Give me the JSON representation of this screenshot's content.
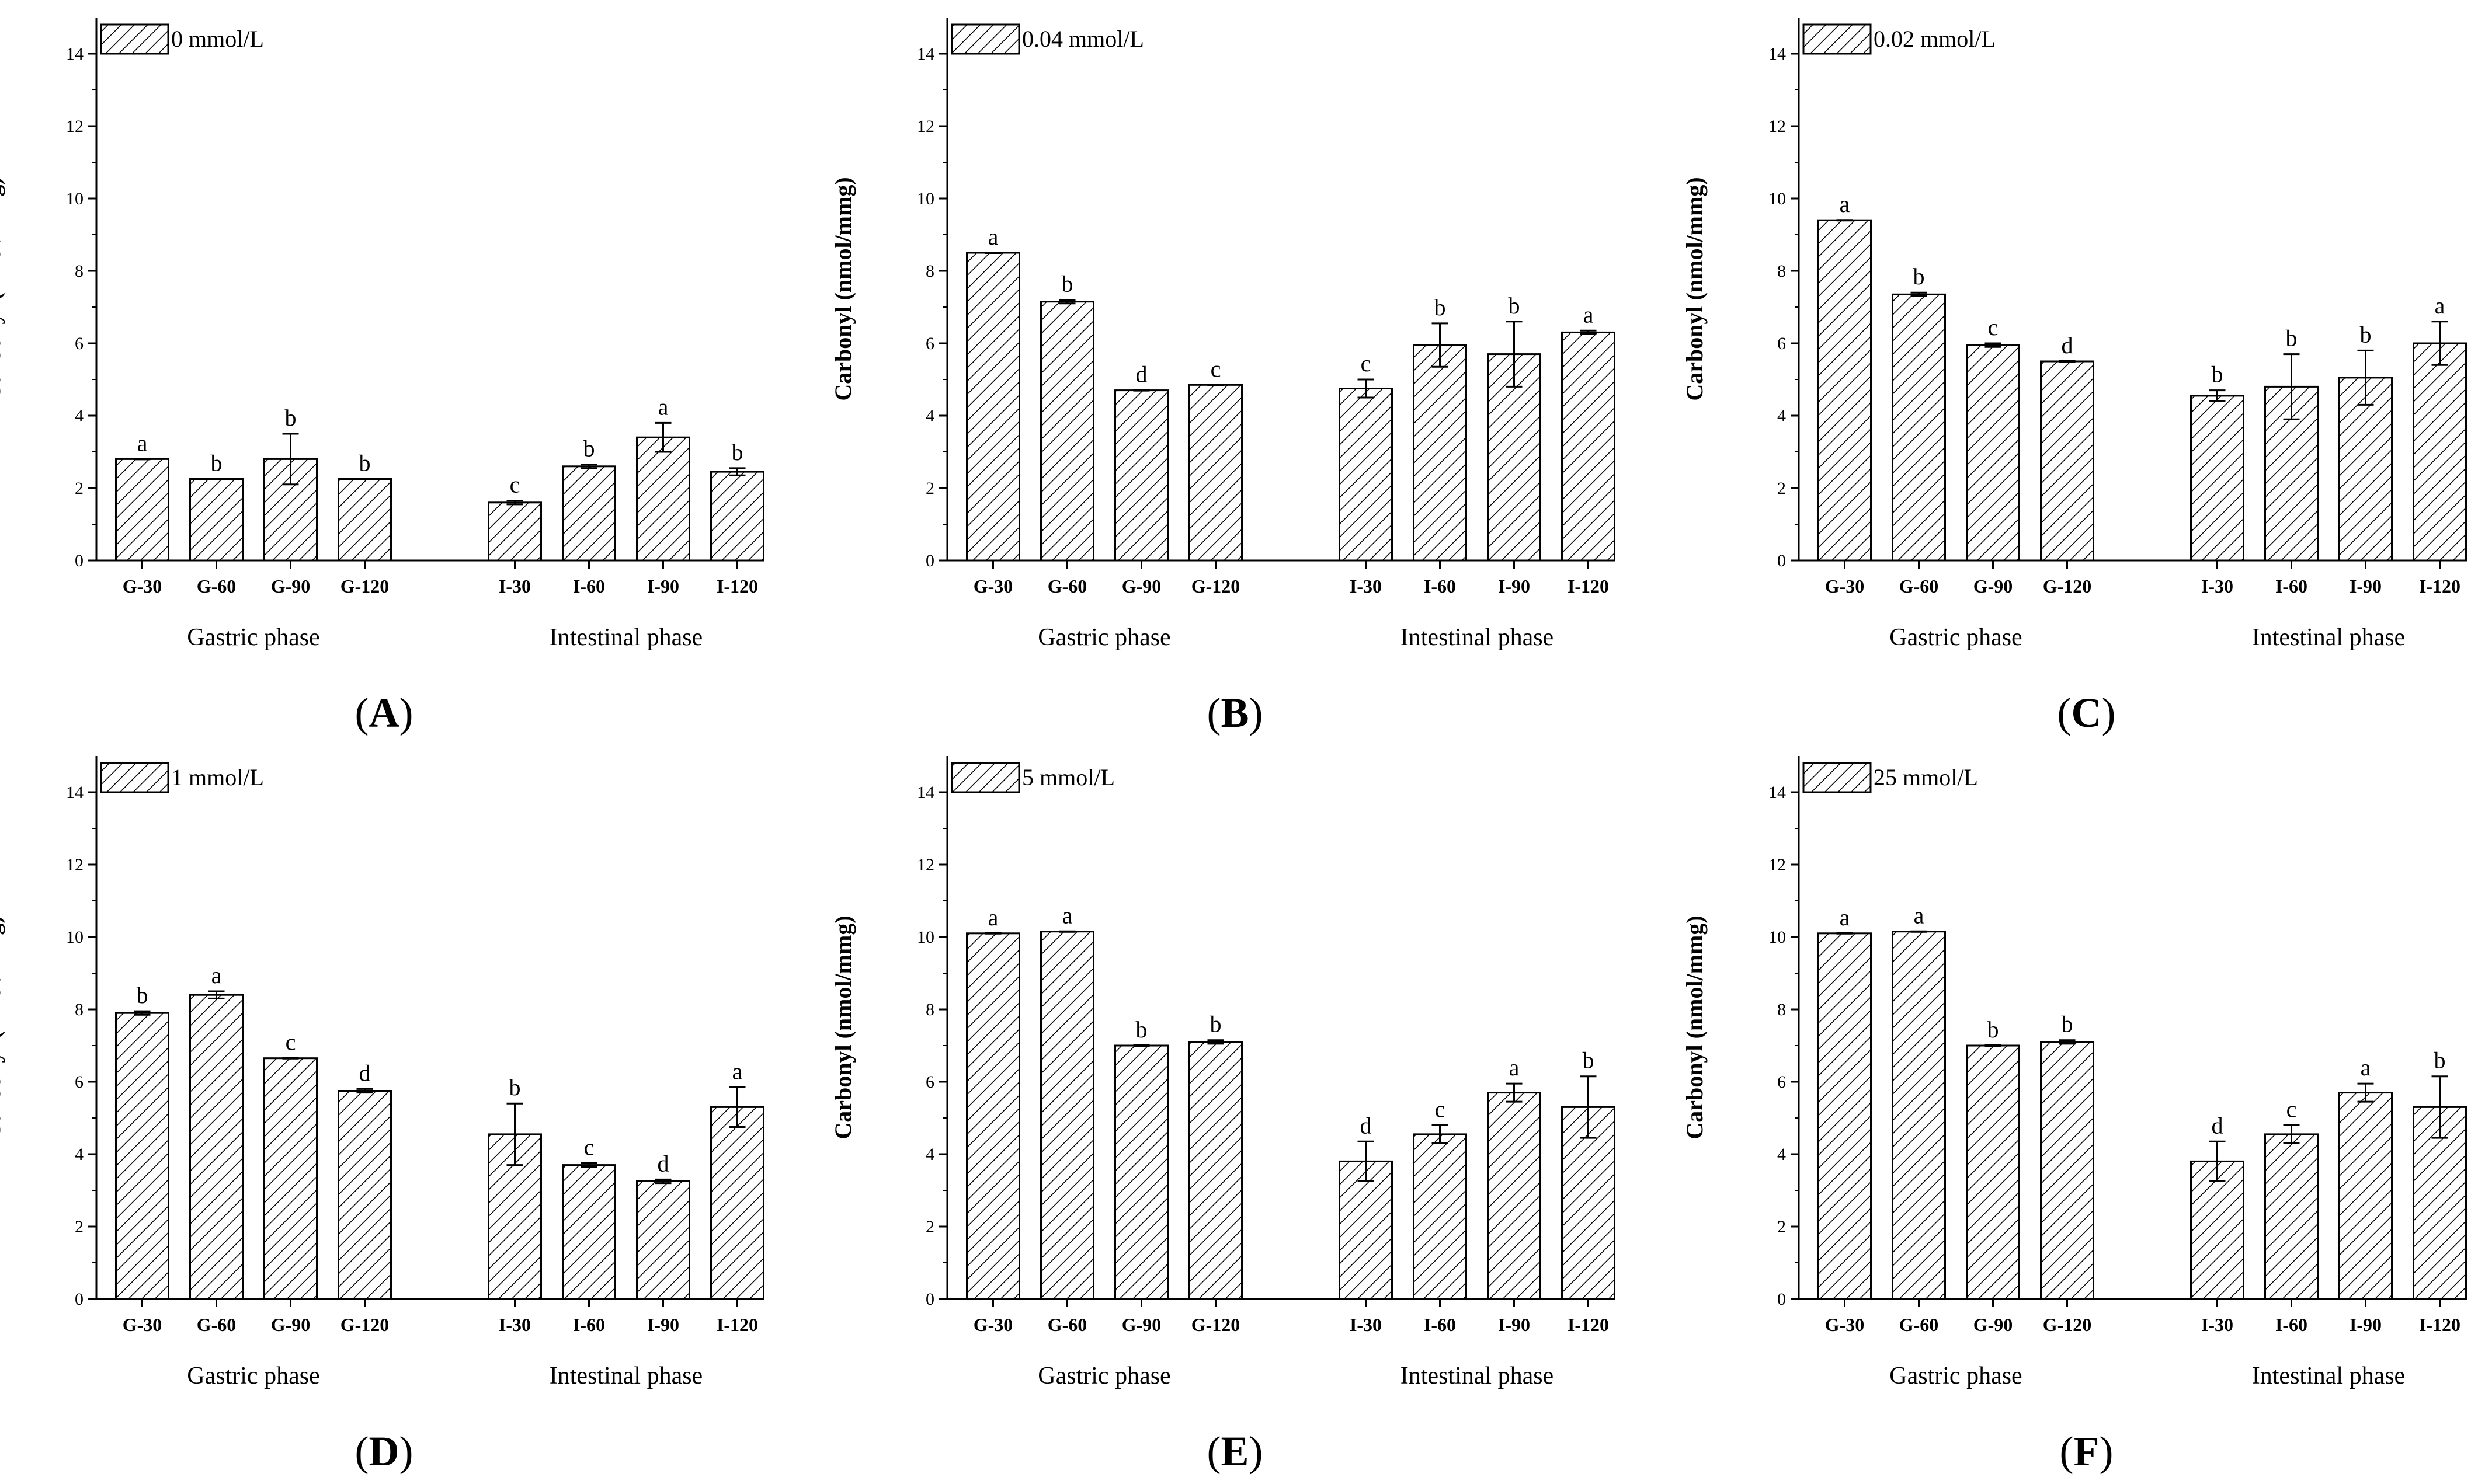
{
  "figure": {
    "panel_label_template": "({letter})",
    "axis_ylabel": "Carbonyl (nmol/mmg)"
  },
  "chart_data": [
    {
      "type": "bar",
      "panel": "A",
      "legend": "0 mmol/L",
      "ylabel": "Carbonyl (nmol/mmg)",
      "ylim": [
        0,
        15
      ],
      "yticks": [
        0,
        2,
        4,
        6,
        8,
        10,
        12,
        14
      ],
      "groups": [
        {
          "name": "Gastric phase",
          "categories": [
            "G-30",
            "G-60",
            "G-90",
            "G-120"
          ],
          "values": [
            2.8,
            2.25,
            2.8,
            2.25
          ],
          "errors": [
            0.0,
            0.0,
            0.7,
            0.0
          ],
          "labels": [
            "a",
            "b",
            "b",
            "b"
          ]
        },
        {
          "name": "Intestinal phase",
          "categories": [
            "I-30",
            "I-60",
            "I-90",
            "I-120"
          ],
          "values": [
            1.6,
            2.6,
            3.4,
            2.45
          ],
          "errors": [
            0.05,
            0.05,
            0.4,
            0.1
          ],
          "labels": [
            "c",
            "b",
            "a",
            "b"
          ]
        }
      ]
    },
    {
      "type": "bar",
      "panel": "B",
      "legend": "0.04 mmol/L",
      "ylabel": "Carbonyl (nmol/mmg)",
      "ylim": [
        0,
        15
      ],
      "yticks": [
        0,
        2,
        4,
        6,
        8,
        10,
        12,
        14
      ],
      "groups": [
        {
          "name": "Gastric phase",
          "categories": [
            "G-30",
            "G-60",
            "G-90",
            "G-120"
          ],
          "values": [
            8.5,
            7.15,
            4.7,
            4.85
          ],
          "errors": [
            0.0,
            0.05,
            0.0,
            0.0
          ],
          "labels": [
            "a",
            "b",
            "d",
            "c"
          ]
        },
        {
          "name": "Intestinal phase",
          "categories": [
            "I-30",
            "I-60",
            "I-90",
            "I-120"
          ],
          "values": [
            4.75,
            5.95,
            5.7,
            6.3
          ],
          "errors": [
            0.25,
            0.6,
            0.9,
            0.05
          ],
          "labels": [
            "c",
            "b",
            "b",
            "a"
          ]
        }
      ]
    },
    {
      "type": "bar",
      "panel": "C",
      "legend": "0.02 mmol/L",
      "ylabel": "Carbonyl (nmol/mmg)",
      "ylim": [
        0,
        15
      ],
      "yticks": [
        0,
        2,
        4,
        6,
        8,
        10,
        12,
        14
      ],
      "groups": [
        {
          "name": "Gastric phase",
          "categories": [
            "G-30",
            "G-60",
            "G-90",
            "G-120"
          ],
          "values": [
            9.4,
            7.35,
            5.95,
            5.5
          ],
          "errors": [
            0.0,
            0.05,
            0.05,
            0.0
          ],
          "labels": [
            "a",
            "b",
            "c",
            "d"
          ]
        },
        {
          "name": "Intestinal phase",
          "categories": [
            "I-30",
            "I-60",
            "I-90",
            "I-120"
          ],
          "values": [
            4.55,
            4.8,
            5.05,
            6.0
          ],
          "errors": [
            0.15,
            0.9,
            0.75,
            0.6
          ],
          "labels": [
            "b",
            "b",
            "b",
            "a"
          ]
        }
      ]
    },
    {
      "type": "bar",
      "panel": "D",
      "legend": "1 mmol/L",
      "ylabel": "Carbonyl (nmol/mmg)",
      "ylim": [
        0,
        15
      ],
      "yticks": [
        0,
        2,
        4,
        6,
        8,
        10,
        12,
        14
      ],
      "groups": [
        {
          "name": "Gastric phase",
          "categories": [
            "G-30",
            "G-60",
            "G-90",
            "G-120"
          ],
          "values": [
            7.9,
            8.4,
            6.65,
            5.75
          ],
          "errors": [
            0.05,
            0.1,
            0.0,
            0.05
          ],
          "labels": [
            "b",
            "a",
            "c",
            "d"
          ]
        },
        {
          "name": "Intestinal phase",
          "categories": [
            "I-30",
            "I-60",
            "I-90",
            "I-120"
          ],
          "values": [
            4.55,
            3.7,
            3.25,
            5.3
          ],
          "errors": [
            0.85,
            0.05,
            0.05,
            0.55
          ],
          "labels": [
            "b",
            "c",
            "d",
            "a"
          ]
        }
      ]
    },
    {
      "type": "bar",
      "panel": "E",
      "legend": "5 mmol/L",
      "ylabel": "Carbonyl (nmol/mmg)",
      "ylim": [
        0,
        15
      ],
      "yticks": [
        0,
        2,
        4,
        6,
        8,
        10,
        12,
        14
      ],
      "groups": [
        {
          "name": "Gastric phase",
          "categories": [
            "G-30",
            "G-60",
            "G-90",
            "G-120"
          ],
          "values": [
            10.1,
            10.15,
            7.0,
            7.1
          ],
          "errors": [
            0.0,
            0.0,
            0.0,
            0.05
          ],
          "labels": [
            "a",
            "a",
            "b",
            "b"
          ]
        },
        {
          "name": "Intestinal phase",
          "categories": [
            "I-30",
            "I-60",
            "I-90",
            "I-120"
          ],
          "values": [
            3.8,
            4.55,
            5.7,
            5.3
          ],
          "errors": [
            0.55,
            0.25,
            0.25,
            0.85
          ],
          "labels": [
            "d",
            "c",
            "a",
            "b"
          ]
        }
      ]
    },
    {
      "type": "bar",
      "panel": "F",
      "legend": "25 mmol/L",
      "ylabel": "Carbonyl (nmol/mmg)",
      "ylim": [
        0,
        15
      ],
      "yticks": [
        0,
        2,
        4,
        6,
        8,
        10,
        12,
        14
      ],
      "groups": [
        {
          "name": "Gastric phase",
          "categories": [
            "G-30",
            "G-60",
            "G-90",
            "G-120"
          ],
          "values": [
            10.1,
            10.15,
            7.0,
            7.1
          ],
          "errors": [
            0.0,
            0.0,
            0.0,
            0.05
          ],
          "labels": [
            "a",
            "a",
            "b",
            "b"
          ]
        },
        {
          "name": "Intestinal phase",
          "categories": [
            "I-30",
            "I-60",
            "I-90",
            "I-120"
          ],
          "values": [
            3.8,
            4.55,
            5.7,
            5.3
          ],
          "errors": [
            0.55,
            0.25,
            0.25,
            0.85
          ],
          "labels": [
            "d",
            "c",
            "a",
            "b"
          ]
        }
      ]
    }
  ]
}
